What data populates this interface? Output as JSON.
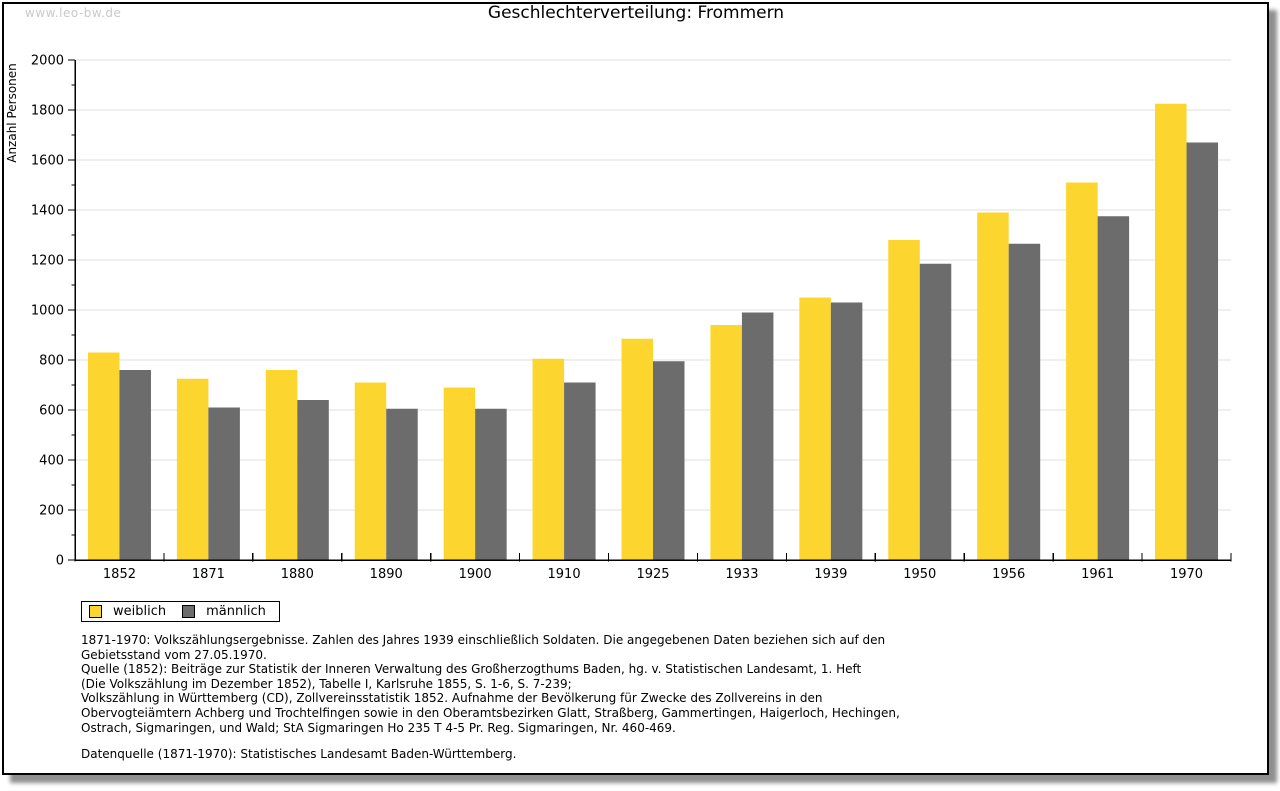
{
  "site": {
    "watermark": "www.leo-bw.de"
  },
  "chart_data": {
    "type": "bar",
    "title": "Geschlechterverteilung: Frommern",
    "ylabel": "Anzahl Personen",
    "ylim": [
      0,
      2000
    ],
    "ytick_major": 200,
    "ytick_minor": 100,
    "grid": true,
    "legend_position": "bottom-left",
    "categories": [
      "1852",
      "1871",
      "1880",
      "1890",
      "1900",
      "1910",
      "1925",
      "1933",
      "1939",
      "1950",
      "1956",
      "1961",
      "1970"
    ],
    "series": [
      {
        "name": "weiblich",
        "color": "#fcd52f",
        "values": [
          830,
          725,
          760,
          710,
          690,
          805,
          885,
          940,
          1050,
          1280,
          1390,
          1510,
          1825
        ]
      },
      {
        "name": "männlich",
        "color": "#6c6c6c",
        "values": [
          760,
          610,
          640,
          605,
          605,
          710,
          795,
          990,
          1030,
          1185,
          1265,
          1375,
          1670
        ]
      }
    ],
    "colors": {
      "grid": "#dfdfdf",
      "axis": "#000000",
      "tick_text": "#000000"
    }
  },
  "notes": {
    "body": "1871-1970: Volkszählungsergebnisse. Zahlen des Jahres 1939 einschließlich Soldaten. Die angegebenen Daten beziehen sich auf den\nGebietsstand vom 27.05.1970.\nQuelle (1852): Beiträge zur Statistik der Inneren Verwaltung des Großherzogthums Baden, hg. v. Statistischen Landesamt, 1. Heft\n(Die Volkszählung im Dezember 1852), Tabelle I, Karlsruhe 1855, S. 1-6, S. 7-239;\nVolkszählung in Württemberg (CD), Zollvereinsstatistik 1852. Aufnahme der Bevölkerung für Zwecke des Zollvereins in den\nObervogteiämtern Achberg und Trochtelfingen sowie in den Oberamtsbezirken Glatt, Straßberg, Gammertingen, Haigerloch, Hechingen,\nOstrach, Sigmaringen, und Wald; StA Sigmaringen Ho 235 T 4-5 Pr. Reg. Sigmaringen, Nr. 460-469.",
    "datasource": "Datenquelle (1871-1970): Statistisches Landesamt Baden-Württemberg."
  }
}
